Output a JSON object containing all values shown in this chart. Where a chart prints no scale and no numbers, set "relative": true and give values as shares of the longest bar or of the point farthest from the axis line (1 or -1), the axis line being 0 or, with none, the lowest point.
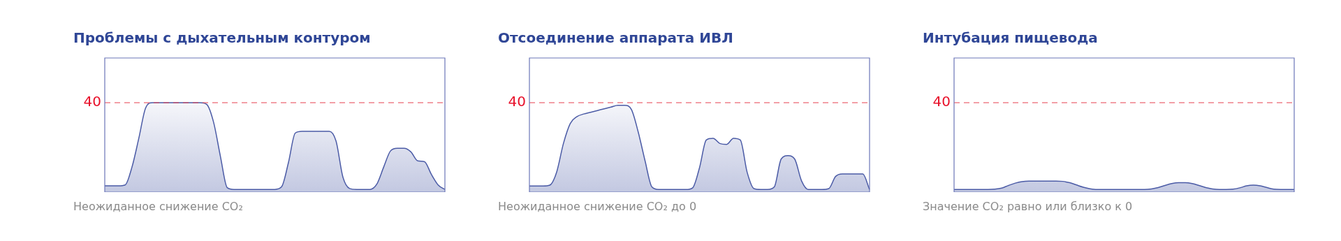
{
  "chart_data": [
    {
      "type": "area",
      "relative": true,
      "title": "Проблемы с дыхательным контуром",
      "annotations": [
        "Неожиданное снижение CO₂",
        "40"
      ],
      "categories": [
        null,
        null,
        null,
        null,
        null,
        null,
        null,
        null,
        null,
        null,
        null,
        null,
        null,
        null,
        null,
        null,
        null,
        null,
        null,
        null,
        null,
        null,
        null,
        null,
        null,
        null,
        null,
        null,
        null,
        null,
        null,
        null,
        null,
        null,
        null,
        null,
        null,
        null,
        null,
        null,
        null,
        null,
        null,
        null,
        null,
        null,
        null,
        null,
        null,
        null,
        null
      ],
      "series": [
        {
          "color": "#4b5ba6",
          "values": [
            0.07,
            0.07,
            0.07,
            0.08,
            0.28,
            0.6,
            0.94,
            1,
            1,
            1,
            1,
            1,
            1,
            1,
            1,
            0.98,
            0.78,
            0.4,
            0.05,
            0.03,
            0.03,
            0.03,
            0.03,
            0.03,
            0.03,
            0.03,
            0.06,
            0.33,
            0.66,
            0.68,
            0.68,
            0.68,
            0.68,
            0.68,
            0.57,
            0.17,
            0.04,
            0.03,
            0.03,
            0.03,
            0.09,
            0.28,
            0.46,
            0.49,
            0.49,
            0.45,
            0.35,
            0.34,
            0.2,
            0.08,
            0.03
          ]
        }
      ],
      "tick_labels": false,
      "marker": "none",
      "ref_lines": [
        {
          "axis": "y",
          "value": 1,
          "color": "#e8404f",
          "line_style": "dashed"
        }
      ]
    },
    {
      "type": "area",
      "relative": true,
      "title": "Отсоединение аппарата ИВЛ",
      "annotations": [
        "Неожиданное снижение CO₂ до 0",
        "40"
      ],
      "categories": [
        null,
        null,
        null,
        null,
        null,
        null,
        null,
        null,
        null,
        null,
        null,
        null,
        null,
        null,
        null,
        null,
        null,
        null,
        null,
        null,
        null,
        null,
        null,
        null,
        null,
        null,
        null,
        null,
        null,
        null,
        null,
        null,
        null,
        null,
        null,
        null,
        null,
        null,
        null,
        null,
        null,
        null,
        null,
        null,
        null,
        null,
        null,
        null,
        null,
        null,
        null
      ],
      "series": [
        {
          "color": "#4b5ba6",
          "values": [
            0.07,
            0.07,
            0.07,
            0.08,
            0.23,
            0.56,
            0.79,
            0.87,
            0.9,
            0.92,
            0.94,
            0.96,
            0.98,
            1,
            1,
            0.95,
            0.69,
            0.36,
            0.06,
            0.03,
            0.03,
            0.03,
            0.03,
            0.03,
            0.05,
            0.28,
            0.6,
            0.62,
            0.56,
            0.55,
            0.62,
            0.6,
            0.23,
            0.04,
            0.03,
            0.03,
            0.06,
            0.38,
            0.42,
            0.38,
            0.13,
            0.03,
            0.03,
            0.03,
            0.04,
            0.18,
            0.21,
            0.21,
            0.21,
            0.21,
            0.03
          ]
        }
      ],
      "tick_labels": false,
      "marker": "none",
      "ref_lines": [
        {
          "axis": "y",
          "value": 1.03,
          "color": "#e8404f",
          "line_style": "dashed"
        }
      ]
    },
    {
      "type": "area",
      "relative": true,
      "title": "Интубация пищевода",
      "annotations": [
        "Значение CO₂ равно или близко к 0",
        "40"
      ],
      "categories": [
        null,
        null,
        null,
        null,
        null,
        null,
        null,
        null,
        null,
        null,
        null,
        null,
        null,
        null,
        null,
        null,
        null,
        null,
        null,
        null,
        null,
        null,
        null,
        null,
        null,
        null,
        null,
        null,
        null,
        null,
        null,
        null,
        null,
        null,
        null,
        null,
        null,
        null,
        null,
        null,
        null,
        null,
        null,
        null,
        null,
        null,
        null,
        null,
        null,
        null,
        null
      ],
      "series": [
        {
          "color": "#4b5ba6",
          "values": [
            0.24,
            0.24,
            0.24,
            0.24,
            0.24,
            0.24,
            0.27,
            0.37,
            0.61,
            0.82,
            0.96,
            1,
            1,
            1,
            1,
            1,
            0.98,
            0.86,
            0.65,
            0.45,
            0.31,
            0.24,
            0.24,
            0.24,
            0.24,
            0.24,
            0.24,
            0.24,
            0.24,
            0.29,
            0.41,
            0.61,
            0.78,
            0.86,
            0.86,
            0.78,
            0.61,
            0.41,
            0.29,
            0.24,
            0.24,
            0.27,
            0.39,
            0.57,
            0.63,
            0.57,
            0.41,
            0.27,
            0.24,
            0.24,
            0.24
          ]
        }
      ],
      "tick_labels": false,
      "marker": "none",
      "ref_lines": [
        {
          "axis": "y",
          "value": 8.16,
          "color": "#e8404f",
          "line_style": "dashed"
        }
      ]
    }
  ]
}
